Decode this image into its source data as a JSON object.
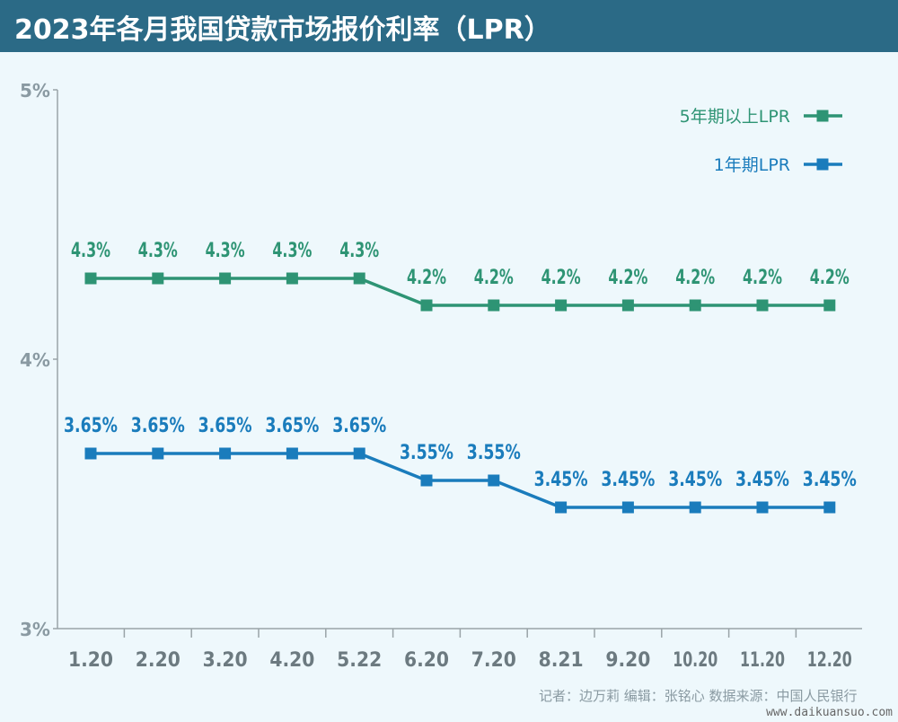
{
  "header": {
    "title": "2023年各月我国贷款市场报价利率（LPR）"
  },
  "colors": {
    "green": "#2e9474",
    "blue": "#1a7cbc",
    "axis": "#9aa4a8",
    "background": "#eef8fc",
    "title_bar": "#2b6a86"
  },
  "chart_data": {
    "type": "line",
    "categories": [
      "1.20",
      "2.20",
      "3.20",
      "4.20",
      "5.22",
      "6.20",
      "7.20",
      "8.21",
      "9.20",
      "10.20",
      "11.20",
      "12.20"
    ],
    "ylim": [
      3,
      5
    ],
    "yticks": [
      "3%",
      "4%",
      "5%"
    ],
    "grid": false,
    "legend_position": "top-right",
    "series": [
      {
        "name": "5年期以上LPR",
        "color": "#2e9474",
        "values": [
          4.3,
          4.3,
          4.3,
          4.3,
          4.3,
          4.2,
          4.2,
          4.2,
          4.2,
          4.2,
          4.2,
          4.2
        ],
        "labels": [
          "4.3%",
          "4.3%",
          "4.3%",
          "4.3%",
          "4.3%",
          "4.2%",
          "4.2%",
          "4.2%",
          "4.2%",
          "4.2%",
          "4.2%",
          "4.2%"
        ]
      },
      {
        "name": "1年期LPR",
        "color": "#1a7cbc",
        "values": [
          3.65,
          3.65,
          3.65,
          3.65,
          3.65,
          3.55,
          3.55,
          3.45,
          3.45,
          3.45,
          3.45,
          3.45
        ],
        "labels": [
          "3.65%",
          "3.65%",
          "3.65%",
          "3.65%",
          "3.65%",
          "3.55%",
          "3.55%",
          "3.45%",
          "3.45%",
          "3.45%",
          "3.45%",
          "3.45%"
        ]
      }
    ]
  },
  "footer": {
    "credit": "记者：边万莉  编辑：张铭心    数据来源：中国人民银行",
    "watermark": "www.daikuansuo.com"
  }
}
